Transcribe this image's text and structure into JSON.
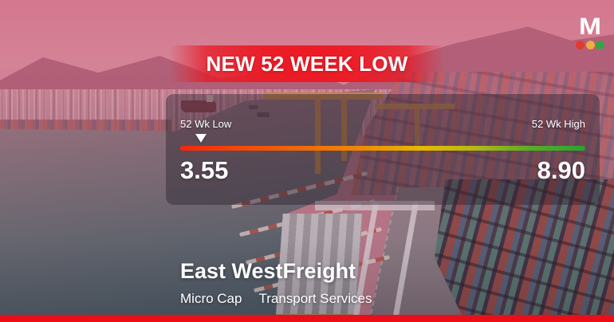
{
  "banner": {
    "text": "NEW 52 WEEK LOW"
  },
  "logo": {
    "letter": "M",
    "dot_colors": {
      "red": "#e23a30",
      "amber": "#ecae3e",
      "green": "#35a447"
    }
  },
  "range_card": {
    "low_label": "52 Wk Low",
    "high_label": "52 Wk High",
    "low_value": "3.55",
    "high_value": "8.90",
    "marker_pct": 5.1
  },
  "company": {
    "name": "East WestFreight",
    "market_cap": "Micro Cap",
    "sector": "Transport Services"
  },
  "colors": {
    "banner_red": "#ec1a24",
    "bottom_bar_red": "#ea0e18",
    "bar_gradient": [
      "#f5270c",
      "#ef8300",
      "#e5b900",
      "#58ad25",
      "#28a52f"
    ]
  },
  "chart_data": {
    "type": "bar",
    "title": "52-week price range gauge",
    "categories": [
      "52 Wk Low",
      "52 Wk High"
    ],
    "values": [
      3.55,
      8.9
    ],
    "annotations": [
      "white triangle marker positioned at the 52-week low end (~5% along red-to-green gradient bar)"
    ]
  }
}
